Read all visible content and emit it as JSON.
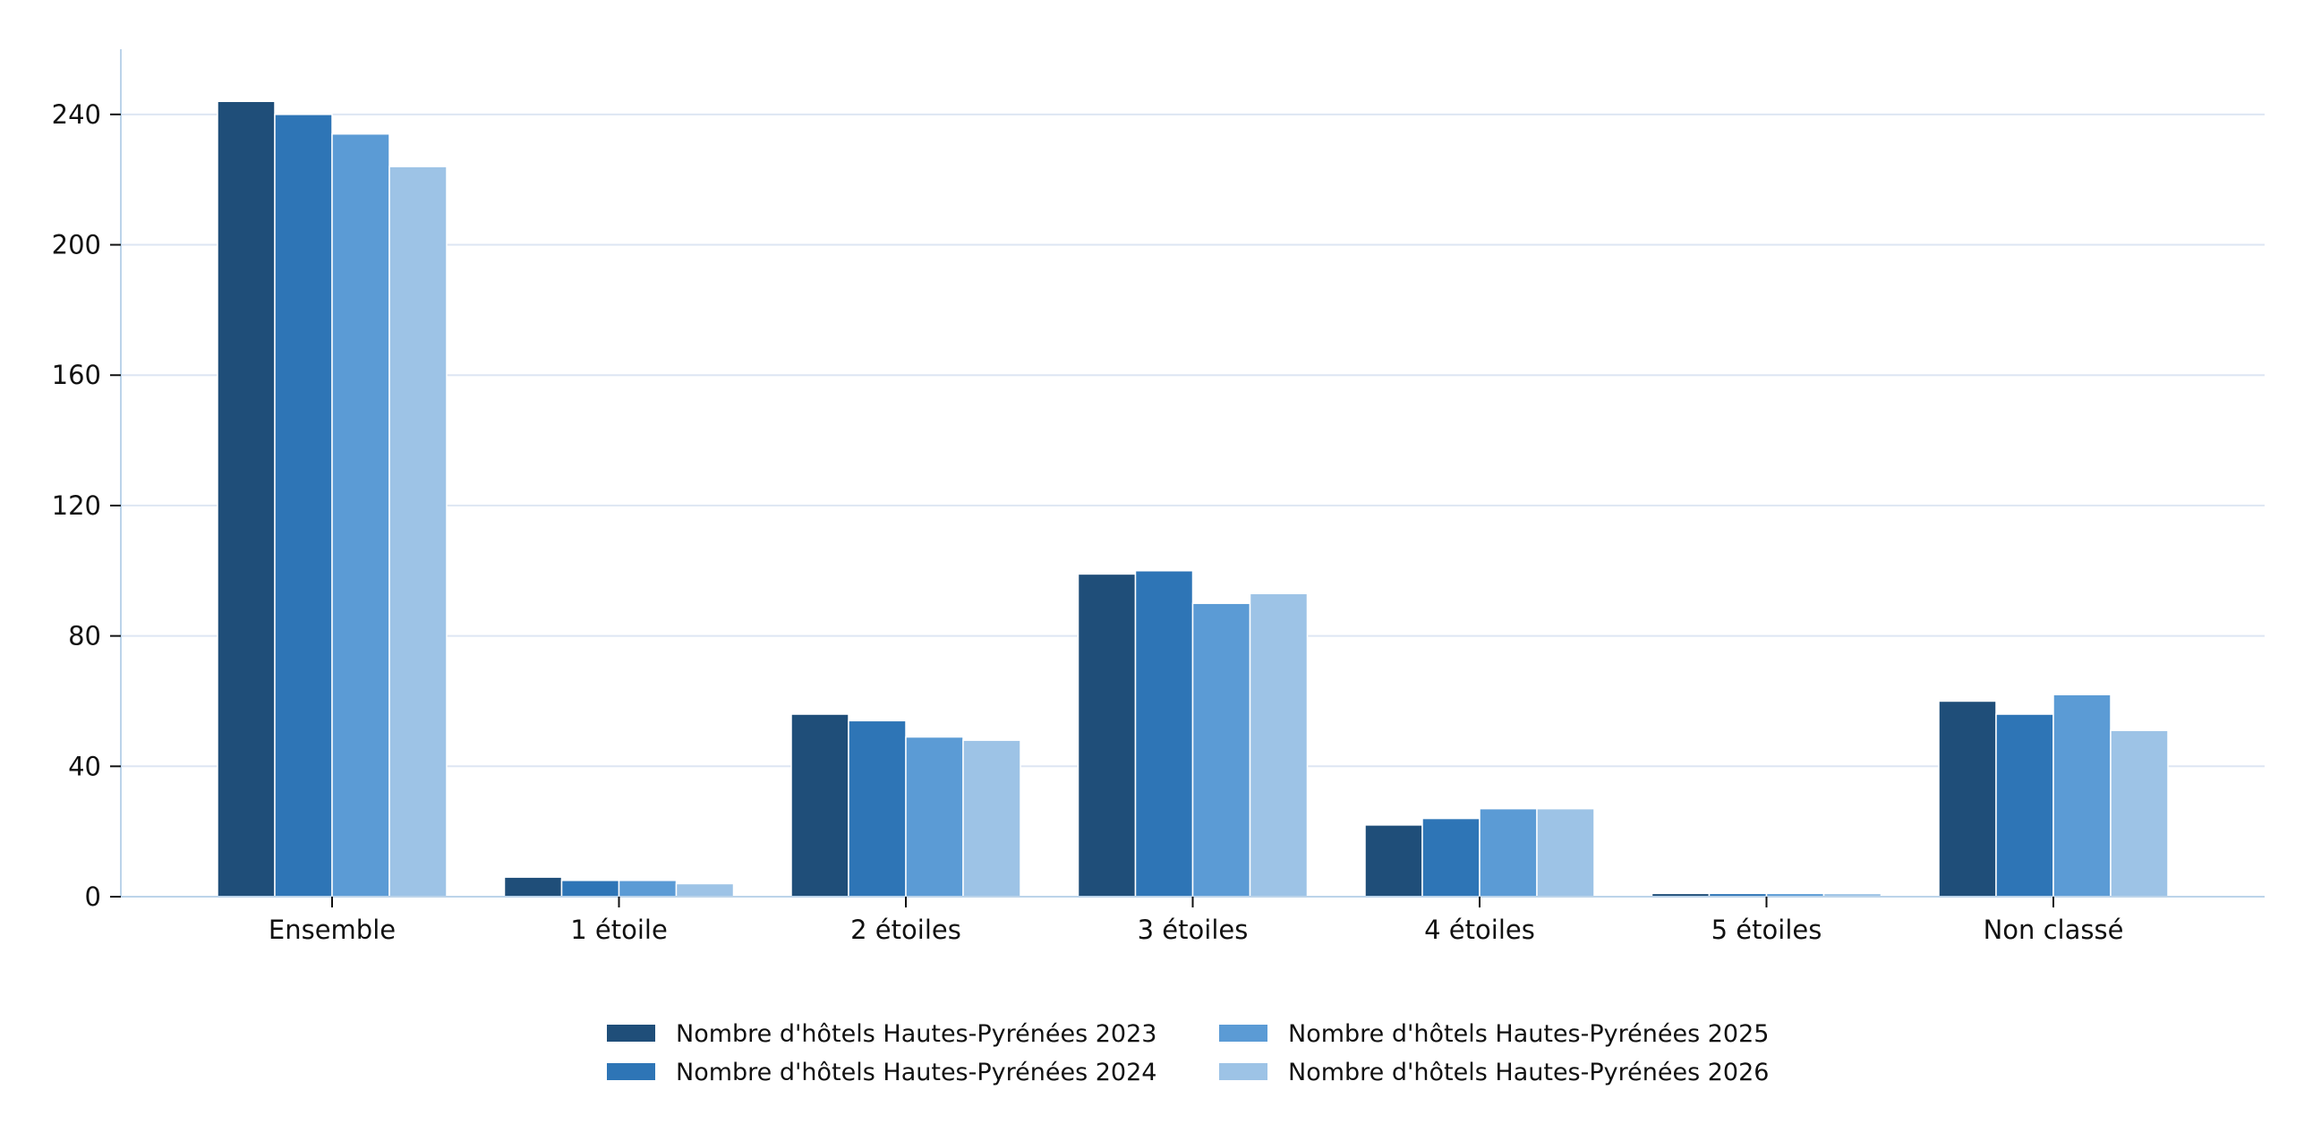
{
  "chart_data": {
    "type": "bar",
    "title": "",
    "xlabel": "",
    "ylabel": "",
    "categories": [
      "Ensemble",
      "1 étoile",
      "2 étoiles",
      "3 étoiles",
      "4 étoiles",
      "5 étoiles",
      "Non classé"
    ],
    "series": [
      {
        "name": "Nombre d'hôtels Hautes-Pyrénées 2023",
        "color": "#1f4e79",
        "values": [
          244,
          6,
          56,
          99,
          22,
          1,
          60
        ]
      },
      {
        "name": "Nombre d'hôtels Hautes-Pyrénées 2024",
        "color": "#2e75b6",
        "values": [
          240,
          5,
          54,
          100,
          24,
          1,
          56
        ]
      },
      {
        "name": "Nombre d'hôtels Hautes-Pyrénées 2025",
        "color": "#5b9bd5",
        "values": [
          234,
          5,
          49,
          90,
          27,
          1,
          62
        ]
      },
      {
        "name": "Nombre d'hôtels Hautes-Pyrénées 2026",
        "color": "#9dc3e6",
        "values": [
          224,
          4,
          48,
          93,
          27,
          1,
          51
        ]
      }
    ],
    "ylim": [
      0,
      260
    ],
    "yticks": [
      0,
      40,
      80,
      120,
      160,
      200,
      240
    ],
    "grid": "horizontal",
    "legend_position": "bottom-center"
  }
}
